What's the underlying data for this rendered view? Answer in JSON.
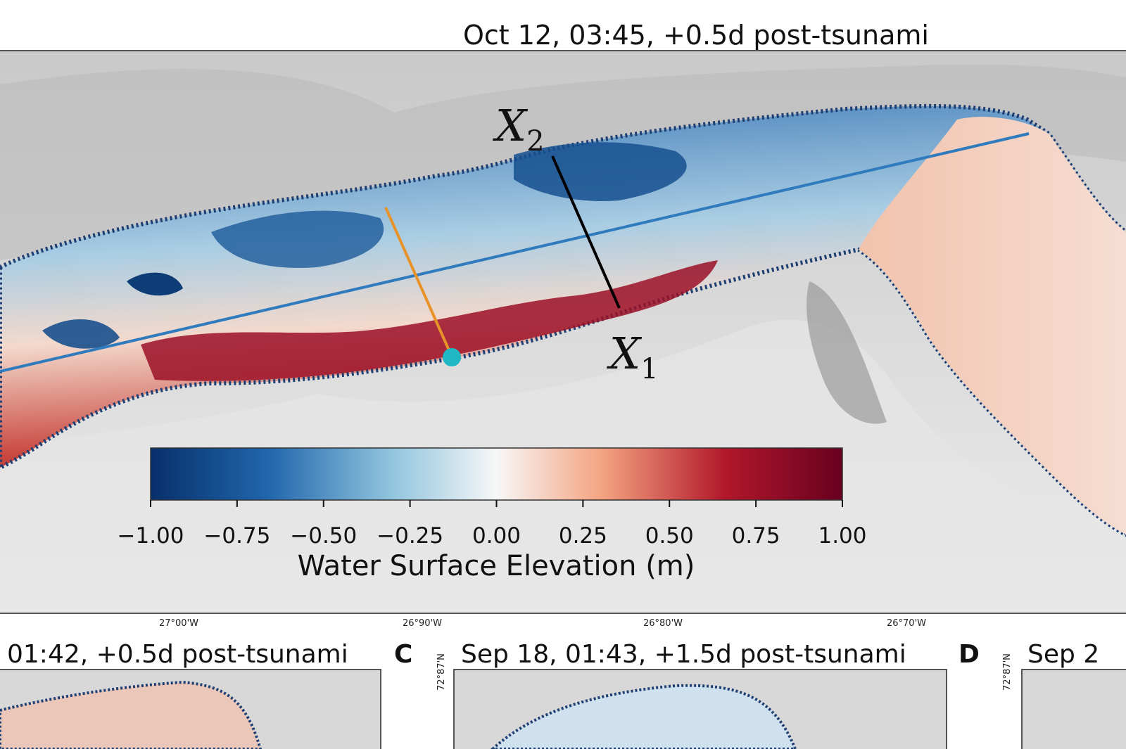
{
  "chart_data": {
    "type": "heatmap",
    "title": "Oct 12, 03:45, +0.5d post-tsunami",
    "colorbar": {
      "label": "Water Surface Elevation (m)",
      "range": [
        -1.0,
        1.0
      ],
      "ticks": [
        "−1.00",
        "−0.75",
        "−0.50",
        "−0.25",
        "0.00",
        "0.25",
        "0.50",
        "0.75",
        "1.00"
      ],
      "tick_values": [
        -1.0,
        -0.75,
        -0.5,
        -0.25,
        0.0,
        0.25,
        0.5,
        0.75,
        1.0
      ],
      "colormap": [
        "#08306b",
        "#2166ac",
        "#92c5de",
        "#f7f7f7",
        "#f4a582",
        "#b2182b",
        "#67001f"
      ]
    },
    "annotations": {
      "x1": {
        "base": "X",
        "sub": "1"
      },
      "x2": {
        "base": "X",
        "sub": "2"
      }
    },
    "lines": [
      {
        "name": "along-fjord profile",
        "color": "#2f7bbd"
      },
      {
        "name": "cross-section X1-X2",
        "color": "#000000"
      },
      {
        "name": "cross-section",
        "color": "#e8922a"
      },
      {
        "name": "gauge point",
        "color": "#1fb8c4"
      }
    ],
    "subpanels": [
      {
        "letter": "",
        "title": "01:42, +0.5d post-tsunami"
      },
      {
        "letter": "C",
        "title": "Sep 18, 01:43, +1.5d post-tsunami"
      },
      {
        "letter": "D",
        "title": "Sep 2"
      }
    ],
    "lon_ticks": [
      "27°00'W",
      "26°90'W",
      "26°80'W",
      "26°70'W"
    ],
    "lat_ticks": [
      "72°87'N",
      "72°87'N"
    ]
  }
}
